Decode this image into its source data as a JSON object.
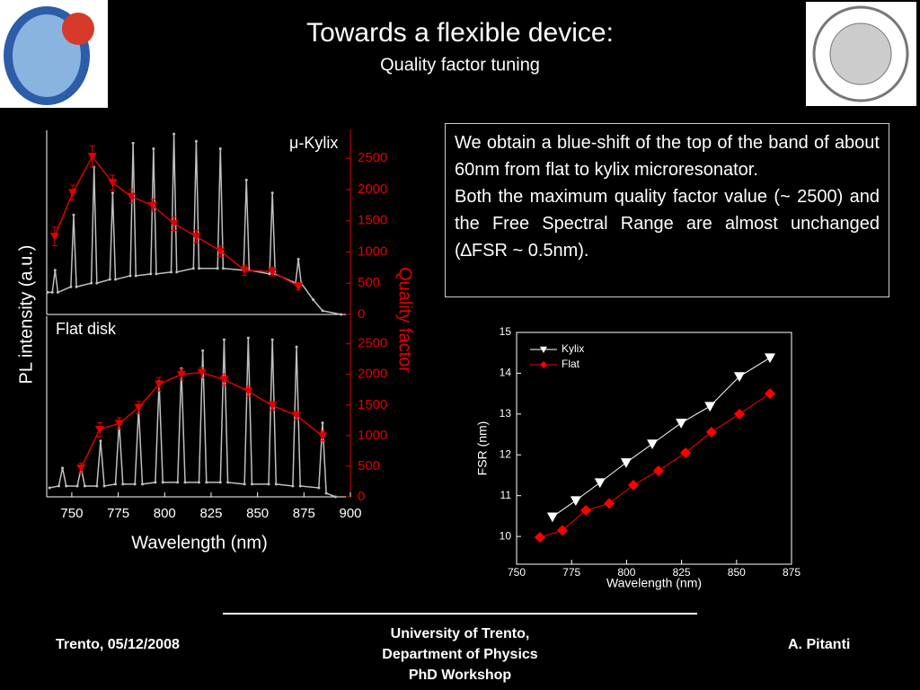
{
  "header": {
    "title": "Towards a flexible device:",
    "subtitle": "Quality factor tuning"
  },
  "text": {
    "paragraphs": [
      "We obtain a blue-shift of the top of the band of about 60nm from flat to kylix microresonator.",
      "Both the maximum quality factor value (~ 2500) and the Free Spectral Range are almost unchanged (∆FSR ~ 0.5nm)."
    ]
  },
  "footer": {
    "left": "Trento, 05/12/2008",
    "center": [
      "University of Trento,",
      "Department of Physics",
      "PhD Workshop"
    ],
    "right": "A. Pitanti"
  },
  "chart_data": [
    {
      "type": "line",
      "annotation": "μ-Kylix",
      "ylabel": "PL intensity (a.u.)",
      "y2label": "Quality factor",
      "xlim": [
        736.5,
        900
      ],
      "ylim": [
        0,
        1
      ],
      "y2lim": [
        0,
        2950
      ],
      "y2ticks": [
        0,
        500,
        1000,
        1500,
        2000,
        2500
      ],
      "y2color": "#e00000",
      "series": [
        {
          "color": "#bfbfbf",
          "marker": "circle",
          "x": [
            737,
            739.5,
            741,
            742.5,
            749.5,
            751,
            752.5,
            760.5,
            762,
            763.5,
            770.5,
            772,
            773.5,
            781.5,
            783,
            784.5,
            792.5,
            794,
            795.5,
            803.5,
            805,
            806.5,
            815.5,
            817,
            818.5,
            828.5,
            830,
            831.5,
            842.5,
            844,
            845.5,
            856.5,
            858,
            859.5,
            870.5,
            872,
            873.5,
            880,
            885,
            895
          ],
          "values": [
            0.12,
            0.12,
            0.24,
            0.12,
            0.15,
            0.54,
            0.15,
            0.17,
            0.8,
            0.17,
            0.19,
            0.66,
            0.19,
            0.21,
            0.93,
            0.21,
            0.22,
            0.9,
            0.22,
            0.23,
            0.98,
            0.23,
            0.25,
            0.94,
            0.25,
            0.25,
            0.9,
            0.25,
            0.24,
            0.73,
            0.24,
            0.22,
            0.66,
            0.22,
            0.17,
            0.3,
            0.17,
            0.08,
            0.02,
            0
          ]
        },
        {
          "color": "#e00000",
          "marker": "triangle-down",
          "axis": "y2",
          "x": [
            740.8,
            750.5,
            761,
            772,
            782,
            793.5,
            805,
            817,
            830,
            843,
            858,
            872
          ],
          "values": [
            1250,
            1950,
            2530,
            2110,
            1890,
            1745,
            1455,
            1250,
            1015,
            710,
            685,
            450
          ],
          "errors": [
            150,
            120,
            170,
            120,
            110,
            100,
            110,
            100,
            90,
            80,
            70,
            60
          ]
        }
      ]
    },
    {
      "type": "line",
      "annotation": "Flat disk",
      "xlabel": "Wavelength (nm)",
      "xlim": [
        736.5,
        900
      ],
      "xticks": [
        750,
        775,
        800,
        825,
        850,
        875,
        900
      ],
      "ylim": [
        0,
        1
      ],
      "y2lim": [
        0,
        2950
      ],
      "y2ticks": [
        0,
        500,
        1000,
        1500,
        2000,
        2500
      ],
      "y2color": "#e00000",
      "series": [
        {
          "color": "#bfbfbf",
          "marker": "circle",
          "x": [
            738,
            743,
            745,
            747,
            753,
            755,
            757,
            763.5,
            765.5,
            767.5,
            773.5,
            775.5,
            777.5,
            784,
            786,
            788,
            795,
            797,
            799,
            807,
            809,
            811,
            818.5,
            820.5,
            822.5,
            830,
            832,
            834,
            843,
            845,
            847,
            856,
            858,
            860,
            869,
            871,
            873,
            883,
            885,
            887,
            892
          ],
          "values": [
            0.05,
            0.06,
            0.16,
            0.06,
            0.06,
            0.16,
            0.06,
            0.06,
            0.31,
            0.06,
            0.07,
            0.41,
            0.07,
            0.07,
            0.49,
            0.07,
            0.08,
            0.64,
            0.08,
            0.08,
            0.71,
            0.08,
            0.08,
            0.81,
            0.08,
            0.08,
            0.87,
            0.08,
            0.07,
            0.88,
            0.07,
            0.07,
            0.87,
            0.07,
            0.06,
            0.83,
            0.06,
            0.05,
            0.41,
            0.02,
            0
          ]
        },
        {
          "color": "#e00000",
          "marker": "triangle-down",
          "axis": "y2",
          "x": [
            755,
            765,
            775.6,
            786,
            797,
            809,
            820,
            832,
            845,
            858,
            871,
            885
          ],
          "values": [
            470,
            1100,
            1200,
            1460,
            1840,
            2000,
            2030,
            1915,
            1725,
            1490,
            1330,
            995
          ],
          "errors": [
            80,
            110,
            90,
            100,
            110,
            90,
            80,
            90,
            80,
            70,
            70,
            80
          ]
        }
      ]
    },
    {
      "type": "line",
      "xlabel": "Wavelength (nm)",
      "ylabel": "FSR (nm)",
      "xlim": [
        750,
        875
      ],
      "xticks": [
        750,
        775,
        800,
        825,
        850,
        875
      ],
      "ylim": [
        9.32,
        15
      ],
      "yticks": [
        10,
        11,
        12,
        13,
        14,
        15
      ],
      "legend": "top-left",
      "series": [
        {
          "name": "Kylix",
          "color": "#ffffff",
          "marker": "triangle-down",
          "x": [
            766.3,
            776.9,
            787.9,
            799.8,
            811.7,
            824.8,
            837.9,
            851.3,
            865.2
          ],
          "values": [
            10.48,
            10.88,
            11.32,
            11.81,
            12.27,
            12.78,
            13.19,
            13.92,
            14.38
          ]
        },
        {
          "name": "Flat",
          "color": "#ff0000",
          "marker": "diamond",
          "x": [
            760.6,
            770.8,
            781.5,
            792.1,
            803.1,
            814.5,
            826.8,
            838.6,
            851.3,
            865.2
          ],
          "values": [
            9.98,
            10.15,
            10.64,
            10.81,
            11.26,
            11.61,
            12.05,
            12.56,
            13.0,
            13.5
          ]
        }
      ]
    }
  ]
}
